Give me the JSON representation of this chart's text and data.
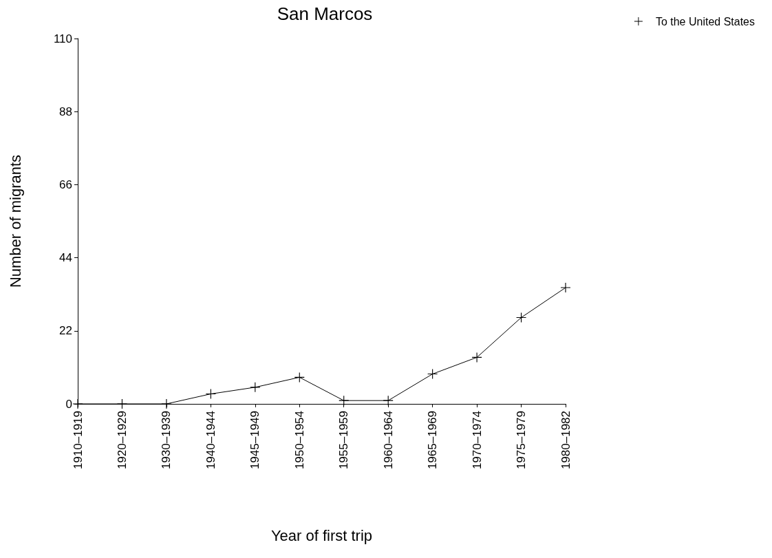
{
  "chart_data": {
    "type": "line",
    "title": "San Marcos",
    "xlabel": "Year of first trip",
    "ylabel": "Number of migrants",
    "categories": [
      "1910–1919",
      "1920–1929",
      "1930–1939",
      "1940–1944",
      "1945–1949",
      "1950–1954",
      "1955–1959",
      "1960–1964",
      "1965–1969",
      "1970–1974",
      "1975–1979",
      "1980–1982"
    ],
    "series": [
      {
        "name": "To the United States",
        "color": "#000000",
        "values": [
          0,
          0,
          0,
          3,
          5,
          8,
          1,
          1,
          9,
          14,
          26,
          35
        ]
      }
    ],
    "ylim": [
      0,
      110
    ],
    "yticks": [
      0,
      22,
      44,
      66,
      88,
      110
    ],
    "grid": false,
    "legend": "top right",
    "marker": "cross",
    "line_style": "solid"
  }
}
